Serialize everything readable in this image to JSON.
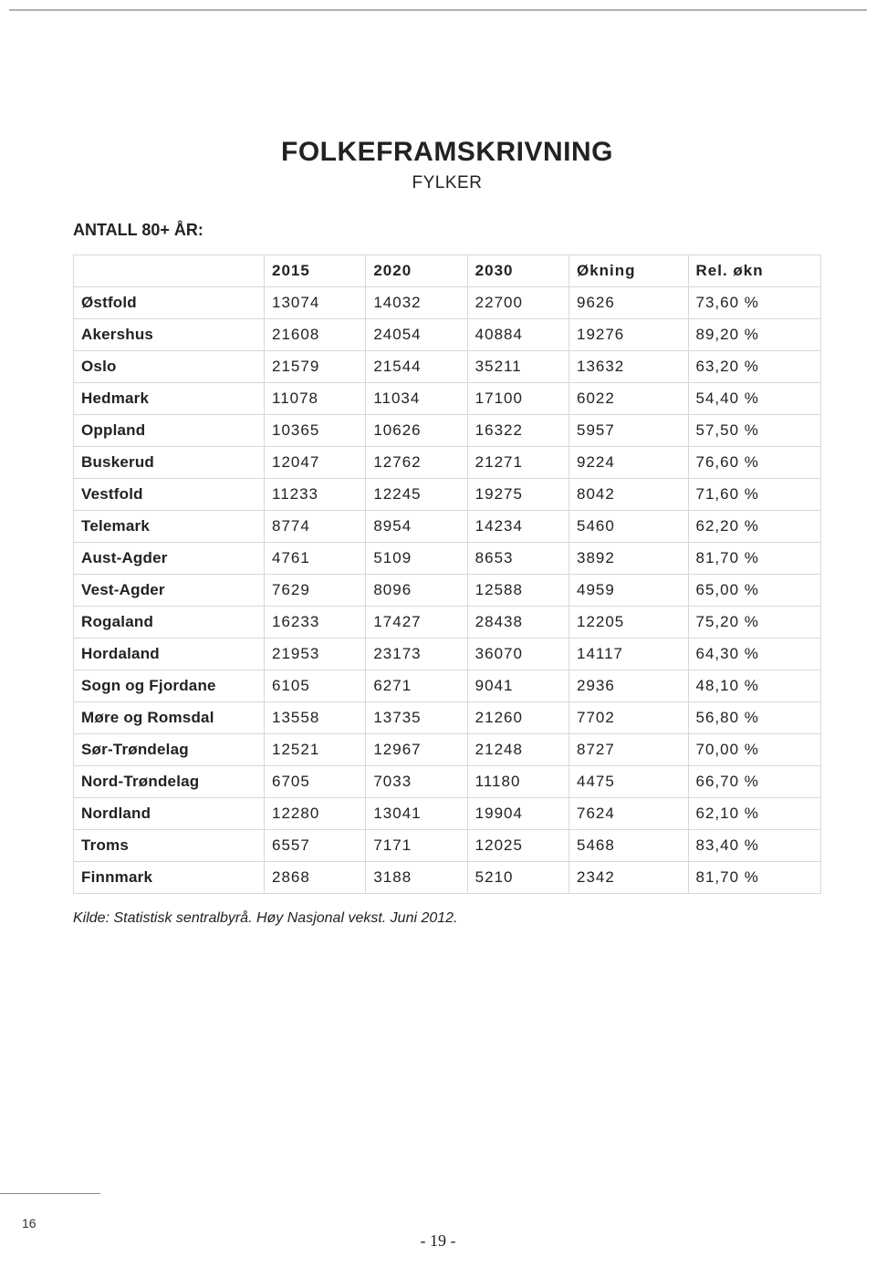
{
  "title": {
    "main": "FOLKEFRAMSKRIVNING",
    "sub": "FYLKER"
  },
  "section_label": "ANTALL 80+ ÅR:",
  "table": {
    "type": "table",
    "border_color": "#d8d8d8",
    "header_font_weight": 700,
    "label_font_weight": 700,
    "font_size_pt": 13,
    "columns": [
      "",
      "2015",
      "2020",
      "2030",
      "Økning",
      "Rel. økn"
    ],
    "rows": [
      [
        "Østfold",
        "13074",
        "14032",
        "22700",
        "9626",
        "73,60 %"
      ],
      [
        "Akershus",
        "21608",
        "24054",
        "40884",
        "19276",
        "89,20 %"
      ],
      [
        "Oslo",
        "21579",
        "21544",
        "35211",
        "13632",
        "63,20 %"
      ],
      [
        "Hedmark",
        "11078",
        "11034",
        "17100",
        "6022",
        "54,40 %"
      ],
      [
        "Oppland",
        "10365",
        "10626",
        "16322",
        "5957",
        "57,50 %"
      ],
      [
        "Buskerud",
        "12047",
        "12762",
        "21271",
        "9224",
        "76,60 %"
      ],
      [
        "Vestfold",
        "11233",
        "12245",
        "19275",
        "8042",
        "71,60 %"
      ],
      [
        "Telemark",
        "8774",
        "8954",
        "14234",
        "5460",
        "62,20 %"
      ],
      [
        "Aust-Agder",
        "4761",
        "5109",
        "8653",
        "3892",
        "81,70 %"
      ],
      [
        "Vest-Agder",
        "7629",
        "8096",
        "12588",
        "4959",
        "65,00 %"
      ],
      [
        "Rogaland",
        "16233",
        "17427",
        "28438",
        "12205",
        "75,20 %"
      ],
      [
        "Hordaland",
        "21953",
        "23173",
        "36070",
        "14117",
        "64,30 %"
      ],
      [
        "Sogn og Fjordane",
        "6105",
        "6271",
        "9041",
        "2936",
        "48,10 %"
      ],
      [
        "Møre og Romsdal",
        "13558",
        "13735",
        "21260",
        "7702",
        "56,80 %"
      ],
      [
        "Sør-Trøndelag",
        "12521",
        "12967",
        "21248",
        "8727",
        "70,00 %"
      ],
      [
        "Nord-Trøndelag",
        "6705",
        "7033",
        "11180",
        "4475",
        "66,70 %"
      ],
      [
        "Nordland",
        "12280",
        "13041",
        "19904",
        "7624",
        "62,10 %"
      ],
      [
        "Troms",
        "6557",
        "7171",
        "12025",
        "5468",
        "83,40 %"
      ],
      [
        "Finnmark",
        "2868",
        "3188",
        "5210",
        "2342",
        "81,70 %"
      ]
    ]
  },
  "source_note": "Kilde: Statistisk sentralbyrå. Høy Nasjonal vekst. Juni 2012.",
  "footer": {
    "left_page_number": "16",
    "center_page_number": "- 19 -"
  },
  "colors": {
    "background": "#ffffff",
    "text": "#222222",
    "table_border": "#d8d8d8",
    "top_rule": "#b0b0b0"
  }
}
